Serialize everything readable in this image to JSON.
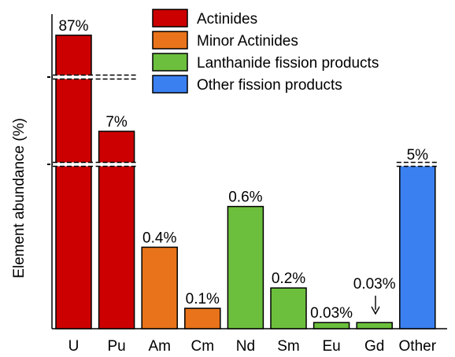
{
  "chart_data": {
    "type": "bar",
    "title": "",
    "xlabel": "",
    "ylabel": "Element abundance (%)",
    "axis_breaks": "broken y-axis (dashed break marks on U, Pu and Other bars)",
    "categories": [
      "U",
      "Pu",
      "Am",
      "Cm",
      "Nd",
      "Sm",
      "Eu",
      "Gd",
      "Other"
    ],
    "values": [
      87,
      7,
      0.4,
      0.1,
      0.6,
      0.2,
      0.03,
      0.03,
      5
    ],
    "data_labels": [
      "87%",
      "7%",
      "0.4%",
      "0.1%",
      "0.6%",
      "0.2%",
      "0.03%",
      "0.03%",
      "5%"
    ],
    "groups": [
      "Actinides",
      "Actinides",
      "Minor Actinides",
      "Minor Actinides",
      "Lanthanide fission products",
      "Lanthanide fission products",
      "Lanthanide fission products",
      "Lanthanide fission products",
      "Other fission products"
    ],
    "legend": [
      {
        "name": "Actinides",
        "color": "#cc0000"
      },
      {
        "name": "Minor Actinides",
        "color": "#e8731a"
      },
      {
        "name": "Lanthanide fission products",
        "color": "#6cbf3c"
      },
      {
        "name": "Other fission products",
        "color": "#3a80f0"
      }
    ],
    "legend_position": "top-right",
    "grid": false
  }
}
